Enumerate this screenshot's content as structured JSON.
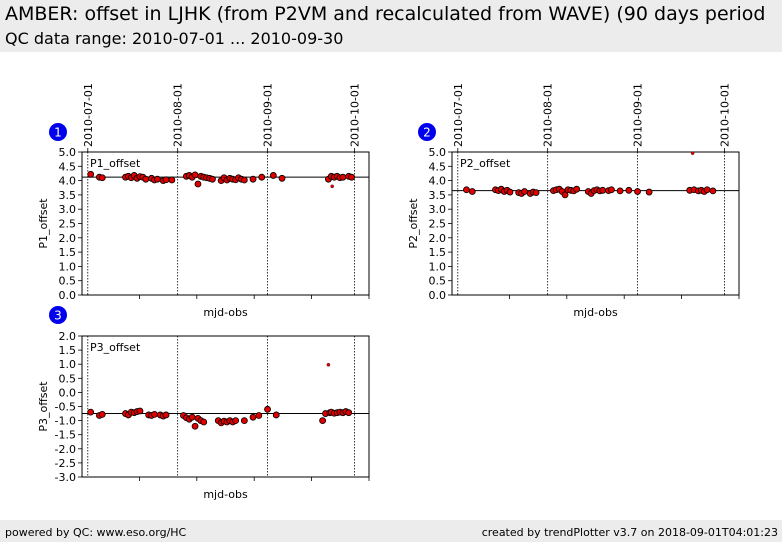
{
  "header": {
    "title": "AMBER: offset in LJHK (from P2VM and recalculated from WAVE) (90 days period",
    "subtitle": "QC data range: 2010-07-01 ... 2010-09-30"
  },
  "footer": {
    "left": "powered by QC: www.eso.org/HC",
    "right": "created by trendPlotter v3.7 on 2018-09-01T04:01:23"
  },
  "colors": {
    "marker_fill": "#e00000",
    "marker_edge": "#000000",
    "badge": "#0000ee",
    "header_bg": "#ececec"
  },
  "chart_data": [
    {
      "type": "scatter",
      "badge": "1",
      "label": "P1_offset",
      "ylabel": "P1_offset",
      "xlabel": "mjd-obs",
      "date_ticks": [
        "2010-07-01",
        "2010-08-01",
        "2010-09-01",
        "2010-10-01"
      ],
      "yticks": [
        "0.0",
        "0.5",
        "1.0",
        "1.5",
        "2.0",
        "2.5",
        "3.0",
        "3.5",
        "4.0",
        "4.5",
        "5.0"
      ],
      "ylim": [
        0,
        5
      ],
      "xlim": [
        55376,
        55475
      ],
      "reference_line": 4.12,
      "grid": false,
      "points": [
        [
          55379.0,
          4.22
        ],
        [
          55382.0,
          4.12
        ],
        [
          55383.0,
          4.1
        ],
        [
          55391.0,
          4.12
        ],
        [
          55392.0,
          4.15
        ],
        [
          55393.0,
          4.1
        ],
        [
          55394.0,
          4.18
        ],
        [
          55395.0,
          4.08
        ],
        [
          55396.0,
          4.14
        ],
        [
          55397.0,
          4.12
        ],
        [
          55398.0,
          4.05
        ],
        [
          55400.0,
          4.08
        ],
        [
          55401.0,
          4.02
        ],
        [
          55402.0,
          4.05
        ],
        [
          55404.0,
          4.0
        ],
        [
          55405.0,
          4.03
        ],
        [
          55407.0,
          4.02
        ],
        [
          55412.0,
          4.15
        ],
        [
          55413.0,
          4.18
        ],
        [
          55414.0,
          4.12
        ],
        [
          55415.0,
          4.2
        ],
        [
          55416.0,
          3.88
        ],
        [
          55417.0,
          4.15
        ],
        [
          55418.0,
          4.12
        ],
        [
          55419.0,
          4.1
        ],
        [
          55420.0,
          4.08
        ],
        [
          55421.0,
          4.05
        ],
        [
          55424.0,
          4.0
        ],
        [
          55425.0,
          4.1
        ],
        [
          55426.0,
          4.02
        ],
        [
          55427.0,
          4.08
        ],
        [
          55428.0,
          4.05
        ],
        [
          55429.0,
          4.03
        ],
        [
          55430.0,
          4.1
        ],
        [
          55431.0,
          4.05
        ],
        [
          55432.0,
          4.02
        ],
        [
          55435.0,
          4.05
        ],
        [
          55438.0,
          4.12
        ],
        [
          55442.0,
          4.18
        ],
        [
          55445.0,
          4.08
        ],
        [
          55461.0,
          4.05
        ],
        [
          55462.0,
          4.15
        ],
        [
          55462.3,
          3.8
        ],
        [
          55463.0,
          4.12
        ],
        [
          55464.0,
          4.15
        ],
        [
          55465.0,
          4.1
        ],
        [
          55466.0,
          4.12
        ],
        [
          55468.0,
          4.15
        ],
        [
          55469.0,
          4.12
        ]
      ]
    },
    {
      "type": "scatter",
      "badge": "2",
      "label": "P2_offset",
      "ylabel": "P2_offset",
      "xlabel": "mjd-obs",
      "date_ticks": [
        "2010-07-01",
        "2010-08-01",
        "2010-09-01",
        "2010-10-01"
      ],
      "yticks": [
        "0.0",
        "0.5",
        "1.0",
        "1.5",
        "2.0",
        "2.5",
        "3.0",
        "3.5",
        "4.0",
        "4.5",
        "5.0"
      ],
      "ylim": [
        0,
        5
      ],
      "xlim": [
        55376,
        55475
      ],
      "reference_line": 3.65,
      "grid": false,
      "points": [
        [
          55381.0,
          3.68
        ],
        [
          55383.0,
          3.62
        ],
        [
          55391.0,
          3.68
        ],
        [
          55392.0,
          3.65
        ],
        [
          55393.0,
          3.7
        ],
        [
          55394.0,
          3.62
        ],
        [
          55395.0,
          3.66
        ],
        [
          55396.0,
          3.6
        ],
        [
          55399.0,
          3.58
        ],
        [
          55400.0,
          3.55
        ],
        [
          55401.0,
          3.62
        ],
        [
          55403.0,
          3.55
        ],
        [
          55404.0,
          3.6
        ],
        [
          55405.0,
          3.58
        ],
        [
          55411.0,
          3.65
        ],
        [
          55412.0,
          3.68
        ],
        [
          55413.0,
          3.7
        ],
        [
          55414.0,
          3.62
        ],
        [
          55415.0,
          3.5
        ],
        [
          55416.0,
          3.68
        ],
        [
          55417.0,
          3.66
        ],
        [
          55418.0,
          3.64
        ],
        [
          55419.0,
          3.7
        ],
        [
          55423.0,
          3.62
        ],
        [
          55424.0,
          3.55
        ],
        [
          55425.0,
          3.65
        ],
        [
          55426.0,
          3.68
        ],
        [
          55427.0,
          3.64
        ],
        [
          55428.0,
          3.66
        ],
        [
          55430.0,
          3.65
        ],
        [
          55431.0,
          3.68
        ],
        [
          55434.0,
          3.64
        ],
        [
          55437.0,
          3.66
        ],
        [
          55440.0,
          3.62
        ],
        [
          55444.0,
          3.6
        ],
        [
          55459.0,
          4.96
        ],
        [
          55458.0,
          3.66
        ],
        [
          55459.5,
          3.68
        ],
        [
          55461.0,
          3.64
        ],
        [
          55462.0,
          3.66
        ],
        [
          55463.0,
          3.62
        ],
        [
          55464.0,
          3.68
        ],
        [
          55466.0,
          3.64
        ]
      ]
    },
    {
      "type": "scatter",
      "badge": "3",
      "label": "P3_offset",
      "ylabel": "P3_offset",
      "xlabel": "mjd-obs",
      "date_ticks": [],
      "yticks": [
        "-3.0",
        "-2.5",
        "-2.0",
        "-1.5",
        "-1.0",
        "-0.5",
        "0.0",
        "0.5",
        "1.0",
        "1.5",
        "2.0"
      ],
      "ylim": [
        -3,
        2
      ],
      "xlim": [
        55376,
        55475
      ],
      "reference_line": -0.75,
      "grid": false,
      "points": [
        [
          55379.0,
          -0.7
        ],
        [
          55382.0,
          -0.82
        ],
        [
          55383.0,
          -0.78
        ],
        [
          55391.0,
          -0.75
        ],
        [
          55392.0,
          -0.8
        ],
        [
          55393.0,
          -0.7
        ],
        [
          55394.0,
          -0.72
        ],
        [
          55395.0,
          -0.68
        ],
        [
          55396.0,
          -0.66
        ],
        [
          55399.0,
          -0.8
        ],
        [
          55400.0,
          -0.82
        ],
        [
          55401.0,
          -0.78
        ],
        [
          55403.0,
          -0.8
        ],
        [
          55404.0,
          -0.84
        ],
        [
          55405.0,
          -0.8
        ],
        [
          55411.0,
          -0.82
        ],
        [
          55412.0,
          -0.9
        ],
        [
          55413.0,
          -0.95
        ],
        [
          55414.0,
          -0.88
        ],
        [
          55415.0,
          -1.2
        ],
        [
          55416.0,
          -0.92
        ],
        [
          55417.0,
          -1.0
        ],
        [
          55418.0,
          -1.05
        ],
        [
          55423.0,
          -1.0
        ],
        [
          55424.0,
          -1.08
        ],
        [
          55425.0,
          -1.02
        ],
        [
          55426.0,
          -1.05
        ],
        [
          55427.0,
          -1.0
        ],
        [
          55428.0,
          -1.05
        ],
        [
          55429.0,
          -1.0
        ],
        [
          55432.0,
          -1.0
        ],
        [
          55435.0,
          -0.88
        ],
        [
          55437.0,
          -0.82
        ],
        [
          55440.0,
          -0.6
        ],
        [
          55443.0,
          -0.8
        ],
        [
          55459.0,
          -1.0
        ],
        [
          55460.0,
          -0.75
        ],
        [
          55461.0,
          0.98
        ],
        [
          55461.5,
          -0.72
        ],
        [
          55462.0,
          -0.7
        ],
        [
          55463.0,
          -0.74
        ],
        [
          55464.0,
          -0.72
        ],
        [
          55465.0,
          -0.7
        ],
        [
          55466.0,
          -0.72
        ],
        [
          55467.0,
          -0.68
        ],
        [
          55468.0,
          -0.72
        ]
      ]
    }
  ]
}
